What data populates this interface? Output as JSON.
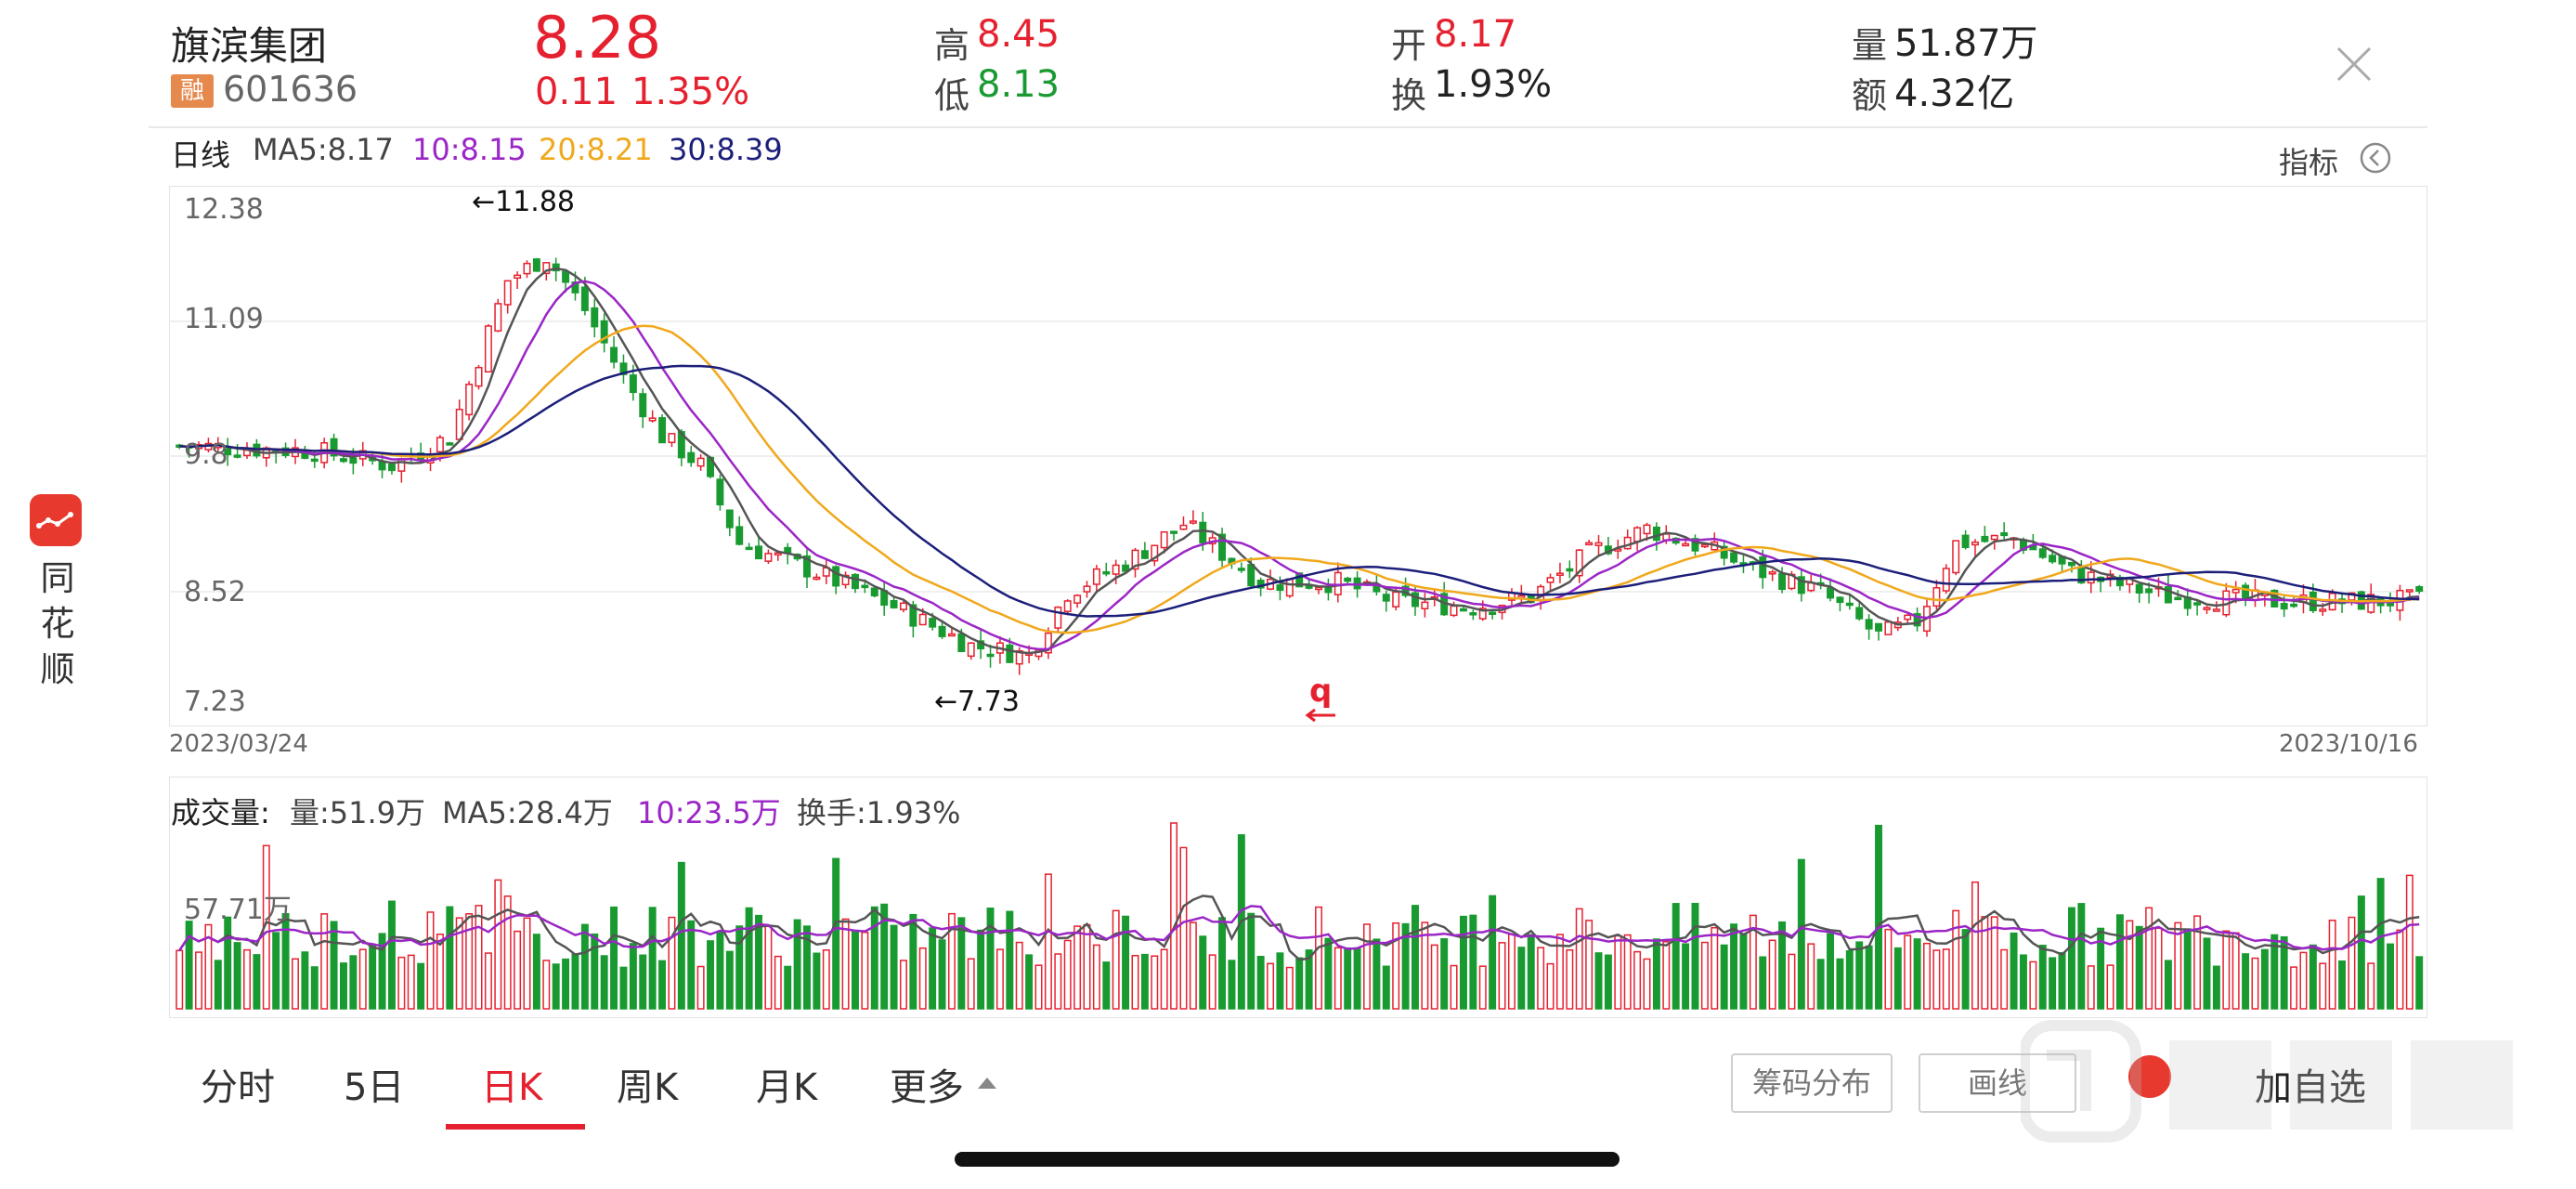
{
  "app": {
    "name": "同花顺"
  },
  "stock": {
    "name": "旗滨集团",
    "badge": "融",
    "code": "601636",
    "price": "8.28",
    "change": "0.11",
    "change_pct": "1.35%",
    "high_label": "高",
    "high": "8.45",
    "low_label": "低",
    "low": "8.13",
    "open_label": "开",
    "open": "8.17",
    "turnover_label": "换",
    "turnover": "1.93%",
    "volume_label": "量",
    "volume": "51.87万",
    "amount_label": "额",
    "amount": "4.32亿"
  },
  "kline": {
    "period_label": "日线",
    "ma5": "MA5:8.17",
    "ma10": "10:8.15",
    "ma20": "20:8.21",
    "ma30": "30:8.39",
    "indicator_label": "指标",
    "y_ticks": [
      "12.38",
      "11.09",
      "9.8",
      "8.52",
      "7.23"
    ],
    "high_annotation": "←11.88",
    "low_annotation": "←7.73",
    "start_date": "2023/03/24",
    "end_date": "2023/10/16",
    "marker": "q"
  },
  "volume": {
    "title": "成交量:",
    "vol": "量:51.9万",
    "ma5": "MA5:28.4万",
    "ma10": "10:23.5万",
    "turnover": "换手:1.93%",
    "y_tick": "57.71万"
  },
  "tabs": {
    "intraday": "分时",
    "five_day": "5日",
    "daily": "日K",
    "weekly": "周K",
    "monthly": "月K",
    "more": "更多"
  },
  "actions": {
    "chip": "筹码分布",
    "draw": "画线",
    "add": "加自选"
  },
  "colors": {
    "up": "#e5212f",
    "down": "#199a31",
    "ma5": "#555555",
    "ma10": "#9b26c6",
    "ma20": "#f0a81c",
    "ma30": "#1c1f7a"
  }
}
